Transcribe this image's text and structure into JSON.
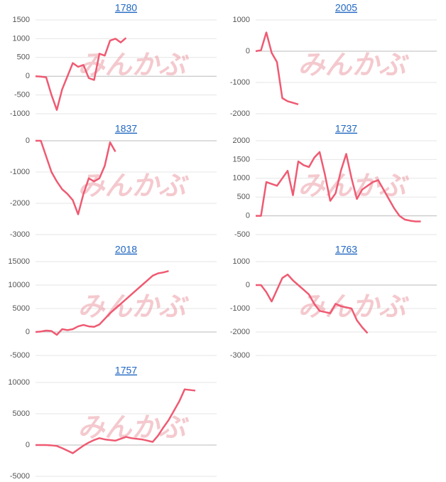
{
  "watermark": "みんかぶ",
  "chart_data": [
    {
      "type": "line",
      "title": "1780",
      "color": "#ef5a72",
      "xlim": [
        0,
        34
      ],
      "ylim": [
        -1000,
        1500
      ],
      "yticks": [
        -1000,
        -500,
        0,
        500,
        1000,
        1500
      ],
      "grid": true,
      "values": [
        0,
        -10,
        -30,
        -500,
        -900,
        -350,
        0,
        350,
        250,
        300,
        -50,
        -100,
        600,
        550,
        950,
        1000,
        900,
        1020
      ]
    },
    {
      "type": "line",
      "title": "2005",
      "color": "#ef5a72",
      "xlim": [
        0,
        34
      ],
      "ylim": [
        -2000,
        1000
      ],
      "yticks": [
        -2000,
        -1000,
        0,
        1000
      ],
      "grid": true,
      "values": [
        0,
        30,
        600,
        -50,
        -350,
        -1500,
        -1600,
        -1650,
        -1700
      ]
    },
    {
      "type": "line",
      "title": "1837",
      "color": "#ef5a72",
      "xlim": [
        0,
        34
      ],
      "ylim": [
        -3000,
        0
      ],
      "yticks": [
        -3000,
        -2000,
        -1000,
        0
      ],
      "grid": true,
      "values": [
        0,
        0,
        -500,
        -1000,
        -1300,
        -1550,
        -1700,
        -1900,
        -2350,
        -1700,
        -1200,
        -1300,
        -1200,
        -800,
        -50,
        -350
      ]
    },
    {
      "type": "line",
      "title": "1737",
      "color": "#ef5a72",
      "xlim": [
        0,
        34
      ],
      "ylim": [
        -500,
        2000
      ],
      "yticks": [
        -500,
        0,
        500,
        1000,
        1500,
        2000
      ],
      "grid": true,
      "values": [
        0,
        0,
        900,
        850,
        800,
        1000,
        1200,
        550,
        1450,
        1350,
        1300,
        1550,
        1700,
        1100,
        400,
        600,
        1200,
        1650,
        1000,
        450,
        700,
        800,
        900,
        950,
        700,
        450,
        200,
        0,
        -100,
        -130,
        -150,
        -150
      ]
    },
    {
      "type": "line",
      "title": "2018",
      "color": "#ef5a72",
      "xlim": [
        0,
        34
      ],
      "ylim": [
        -5000,
        15000
      ],
      "yticks": [
        -5000,
        0,
        5000,
        10000,
        15000
      ],
      "grid": true,
      "values": [
        0,
        100,
        300,
        200,
        -600,
        600,
        400,
        600,
        1200,
        1500,
        1200,
        1100,
        1600,
        2800,
        4000,
        5000,
        6000,
        7000,
        8000,
        9000,
        10000,
        11000,
        12000,
        12500,
        12700,
        13000
      ]
    },
    {
      "type": "line",
      "title": "1763",
      "color": "#ef5a72",
      "xlim": [
        0,
        34
      ],
      "ylim": [
        -3000,
        1000
      ],
      "yticks": [
        -3000,
        -2000,
        -1000,
        0,
        1000
      ],
      "grid": true,
      "values": [
        0,
        0,
        -300,
        -700,
        -200,
        300,
        450,
        200,
        0,
        -200,
        -400,
        -800,
        -1100,
        -1150,
        -1200,
        -800,
        -900,
        -950,
        -1000,
        -1500,
        -1800,
        -2050
      ]
    },
    {
      "type": "line",
      "title": "1757",
      "color": "#ef5a72",
      "xlim": [
        0,
        34
      ],
      "ylim": [
        -5000,
        10000
      ],
      "yticks": [
        -5000,
        0,
        5000,
        10000
      ],
      "grid": true,
      "values": [
        0,
        0,
        0,
        -50,
        -150,
        -500,
        -900,
        -1300,
        -700,
        -100,
        400,
        800,
        1100,
        900,
        800,
        700,
        1000,
        1300,
        1100,
        1000,
        900,
        700,
        500,
        1500,
        2800,
        4000,
        5500,
        7000,
        8900,
        8800,
        8700
      ]
    }
  ]
}
